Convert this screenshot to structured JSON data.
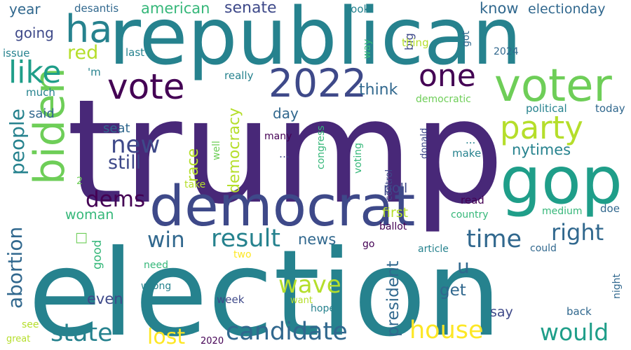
{
  "colors": {
    "background": "#ffffff",
    "palette": [
      "#440154",
      "#482878",
      "#3e4989",
      "#31688e",
      "#26828e",
      "#1f9e89",
      "#35b779",
      "#6ece58",
      "#b5de2b",
      "#fde725"
    ]
  },
  "words": [
    {
      "text": "trump",
      "color": "#482878"
    },
    {
      "text": "election",
      "color": "#26828e"
    },
    {
      "text": "republican",
      "color": "#26828e"
    },
    {
      "text": "democrat",
      "color": "#3e4989"
    },
    {
      "text": "gop",
      "color": "#1f9e89"
    },
    {
      "text": "voter",
      "color": "#6ece58"
    },
    {
      "text": "biden",
      "color": "#6ece58"
    },
    {
      "text": "2022",
      "color": "#3e4989"
    },
    {
      "text": "vote",
      "color": "#440154"
    },
    {
      "text": "ha",
      "color": "#26828e"
    },
    {
      "text": "one",
      "color": "#440154"
    },
    {
      "text": "party",
      "color": "#b5de2b"
    },
    {
      "text": "like",
      "color": "#1f9e89"
    },
    {
      "text": "candidate",
      "color": "#31688e"
    },
    {
      "text": "result",
      "color": "#26828e"
    },
    {
      "text": "house",
      "color": "#fde725"
    },
    {
      "text": "state",
      "color": "#26828e"
    },
    {
      "text": "wave",
      "color": "#b5de2b"
    },
    {
      "text": "time",
      "color": "#31688e"
    },
    {
      "text": "right",
      "color": "#31688e"
    },
    {
      "text": "would",
      "color": "#1f9e89"
    },
    {
      "text": "new",
      "color": "#3e4989"
    },
    {
      "text": "dems",
      "color": "#440154"
    },
    {
      "text": "win",
      "color": "#31688e"
    },
    {
      "text": "lost",
      "color": "#fde725"
    },
    {
      "text": "abortion",
      "color": "#31688e"
    },
    {
      "text": "people",
      "color": "#26828e"
    },
    {
      "text": "still",
      "color": "#3e4989"
    },
    {
      "text": "red",
      "color": "#b5de2b"
    },
    {
      "text": "democracy",
      "color": "#b5de2b"
    },
    {
      "text": "nytimes",
      "color": "#26828e"
    },
    {
      "text": "president",
      "color": "#31688e"
    },
    {
      "text": "race",
      "color": "#b5de2b"
    },
    {
      "text": "senate",
      "color": "#3e4989"
    },
    {
      "text": "american",
      "color": "#35b779"
    },
    {
      "text": "think",
      "color": "#31688e"
    },
    {
      "text": "know",
      "color": "#31688e"
    },
    {
      "text": "electionday",
      "color": "#31688e"
    },
    {
      "text": "u",
      "color": "#31688e"
    },
    {
      "text": "get",
      "color": "#31688e"
    },
    {
      "text": "news",
      "color": "#31688e"
    },
    {
      "text": "poll",
      "color": "#3e4989"
    },
    {
      "text": "day",
      "color": "#31688e"
    },
    {
      "text": "going",
      "color": "#3e4989"
    },
    {
      "text": "year",
      "color": "#31688e"
    },
    {
      "text": "woman",
      "color": "#35b779"
    },
    {
      "text": "seat",
      "color": "#31688e"
    },
    {
      "text": "first",
      "color": "#b5de2b"
    },
    {
      "text": "say",
      "color": "#3e4989"
    },
    {
      "text": "even",
      "color": "#3e4989"
    },
    {
      "text": "good",
      "color": "#35b779"
    },
    {
      "text": "said",
      "color": "#31688e"
    },
    {
      "text": "political",
      "color": "#26828e"
    },
    {
      "text": "today",
      "color": "#31688e"
    },
    {
      "text": "big",
      "color": "#3e4989"
    },
    {
      "text": "desantis",
      "color": "#31688e"
    },
    {
      "text": "look",
      "color": "#26828e"
    },
    {
      "text": "thing",
      "color": "#b5de2b"
    },
    {
      "text": "got",
      "color": "#31688e"
    },
    {
      "text": "2024",
      "color": "#31688e"
    },
    {
      "text": "issue",
      "color": "#26828e"
    },
    {
      "text": "last",
      "color": "#26828e"
    },
    {
      "text": "'m",
      "color": "#26828e"
    },
    {
      "text": "really",
      "color": "#26828e"
    },
    {
      "text": "way",
      "color": "#35b779"
    },
    {
      "text": "much",
      "color": "#26828e"
    },
    {
      "text": "democratic",
      "color": "#6ece58"
    },
    {
      "text": "many",
      "color": "#440154"
    },
    {
      "text": "...",
      "color": "#26828e"
    },
    {
      "text": "well",
      "color": "#6ece58"
    },
    {
      "text": "congress",
      "color": "#35b779"
    },
    {
      "text": "voting",
      "color": "#35b779"
    },
    {
      "text": "control",
      "color": "#3e4989"
    },
    {
      "text": "donald",
      "color": "#3e4989"
    },
    {
      "text": "make",
      "color": "#26828e"
    },
    {
      "text": "…",
      "color": "#3e4989"
    },
    {
      "text": "2",
      "color": "#6ece58"
    },
    {
      "text": "take",
      "color": "#b5de2b"
    },
    {
      "text": "read",
      "color": "#440154"
    },
    {
      "text": "country",
      "color": "#35b779"
    },
    {
      "text": "medium",
      "color": "#35b779"
    },
    {
      "text": "doe",
      "color": "#31688e"
    },
    {
      "text": "ballot",
      "color": "#440154"
    },
    {
      "text": "go",
      "color": "#440154"
    },
    {
      "text": "article",
      "color": "#26828e"
    },
    {
      "text": "could",
      "color": "#31688e"
    },
    {
      "text": "two",
      "color": "#fde725"
    },
    {
      "text": "need",
      "color": "#35b779"
    },
    {
      "text": "wrong",
      "color": "#26828e"
    },
    {
      "text": "night",
      "color": "#31688e"
    },
    {
      "text": "week",
      "color": "#3e4989"
    },
    {
      "text": "want",
      "color": "#b5de2b"
    },
    {
      "text": "hope",
      "color": "#26828e"
    },
    {
      "text": "back",
      "color": "#31688e"
    },
    {
      "text": "see",
      "color": "#b5de2b"
    },
    {
      "text": "great",
      "color": "#b5de2b"
    },
    {
      "text": "2020",
      "color": "#440154"
    },
    {
      "text": "",
      "color": "#6ece58"
    }
  ]
}
